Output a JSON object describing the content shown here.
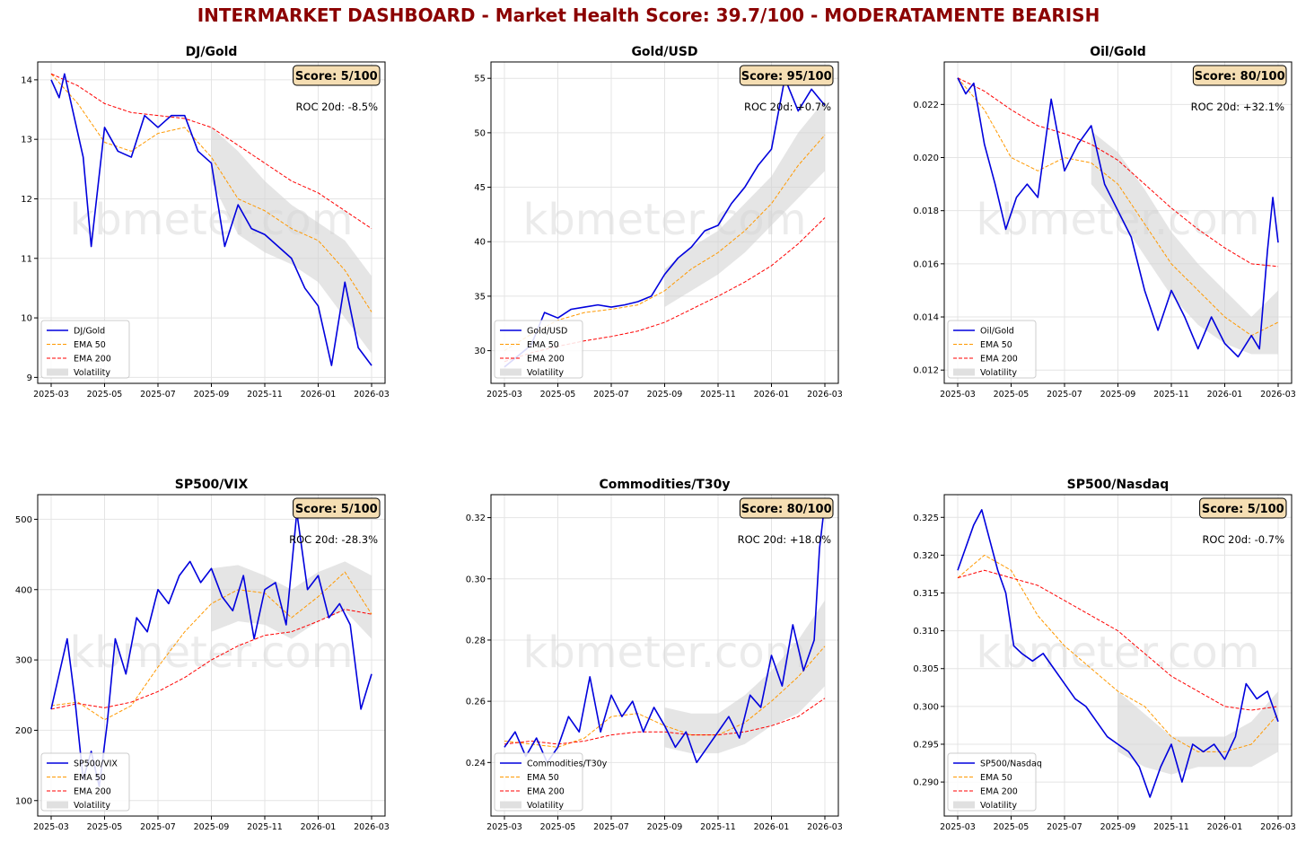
{
  "title": "INTERMARKET DASHBOARD - Market Health Score: 39.7/100 - MODERATAMENTE BEARISH",
  "colors": {
    "title": "#8b0000",
    "price": "#0000dd",
    "ema50": "#ff9900",
    "ema200": "#ff0000",
    "volatility": "#d3d3d3",
    "scoreBox": "#f5deb3"
  },
  "watermark": "kbmeter.com",
  "legend_labels": {
    "ema50": "EMA 50",
    "ema200": "EMA 200",
    "volatility": "Volatility"
  },
  "chart_data": [
    {
      "type": "line",
      "title": "DJ/Gold",
      "score": "Score: 5/100",
      "roc": "ROC 20d: -8.5%",
      "xlabels": [
        "2025-03",
        "2025-05",
        "2025-07",
        "2025-09",
        "2025-11",
        "2026-01",
        "2026-03"
      ],
      "ylim": [
        8.9,
        14.3
      ],
      "yticks": [
        9,
        10,
        11,
        12,
        13,
        14
      ],
      "series": [
        {
          "name": "DJ/Gold",
          "x": [
            0,
            0.3,
            0.5,
            0.8,
            1.2,
            1.5,
            2.0,
            2.5,
            3.0,
            3.5,
            4.0,
            4.5,
            5.0,
            5.5,
            6.0,
            6.5,
            7.0,
            7.5,
            8.0,
            8.5,
            9.0,
            9.5,
            10.0,
            10.5,
            11.0,
            11.5,
            12.0
          ],
          "values": [
            14.0,
            13.7,
            14.1,
            13.5,
            12.7,
            11.2,
            13.2,
            12.8,
            12.7,
            13.4,
            13.2,
            13.4,
            13.4,
            12.8,
            12.6,
            11.2,
            11.9,
            11.5,
            11.4,
            11.2,
            11.0,
            10.5,
            10.2,
            9.2,
            10.6,
            9.5,
            9.2
          ]
        },
        {
          "name": "EMA 50",
          "x": [
            0,
            1,
            2,
            3,
            4,
            5,
            6,
            7,
            8,
            9,
            10,
            11,
            12
          ],
          "values": [
            14.1,
            13.6,
            12.95,
            12.8,
            13.1,
            13.2,
            12.7,
            12.0,
            11.8,
            11.5,
            11.3,
            10.8,
            10.1
          ]
        },
        {
          "name": "EMA 200",
          "x": [
            0,
            1,
            2,
            3,
            4,
            5,
            6,
            7,
            8,
            9,
            10,
            11,
            12
          ],
          "values": [
            14.1,
            13.9,
            13.6,
            13.45,
            13.4,
            13.35,
            13.2,
            12.9,
            12.6,
            12.3,
            12.1,
            11.8,
            11.5
          ]
        }
      ],
      "volatility_band": {
        "x": [
          6,
          7,
          8,
          9,
          10,
          11,
          12
        ],
        "upper": [
          13.2,
          12.8,
          12.3,
          11.9,
          11.6,
          11.3,
          10.7
        ],
        "lower": [
          12.3,
          11.4,
          11.1,
          10.9,
          10.6,
          10.0,
          9.4
        ]
      }
    },
    {
      "type": "line",
      "title": "Gold/USD",
      "score": "Score: 95/100",
      "roc": "ROC 20d: +0.7%",
      "xlabels": [
        "2025-03",
        "2025-05",
        "2025-07",
        "2025-09",
        "2025-11",
        "2026-01",
        "2026-03"
      ],
      "ylim": [
        27,
        56.5
      ],
      "yticks": [
        30,
        35,
        40,
        45,
        50,
        55
      ],
      "series": [
        {
          "name": "Gold/USD",
          "x": [
            0,
            0.5,
            1.0,
            1.5,
            2.0,
            2.5,
            3.0,
            3.5,
            4.0,
            4.5,
            5.0,
            5.5,
            6.0,
            6.5,
            7.0,
            7.5,
            8.0,
            8.5,
            9.0,
            9.5,
            10.0,
            10.5,
            11.0,
            11.5,
            12.0
          ],
          "values": [
            28.5,
            29.5,
            30.5,
            33.5,
            33.0,
            33.8,
            34.0,
            34.2,
            34.0,
            34.2,
            34.5,
            35.0,
            37.0,
            38.5,
            39.5,
            41.0,
            41.5,
            43.5,
            45.0,
            47.0,
            48.5,
            55.0,
            52.0,
            54.0,
            52.5
          ]
        },
        {
          "name": "EMA 50",
          "x": [
            0,
            1,
            2,
            3,
            4,
            5,
            6,
            7,
            8,
            9,
            10,
            11,
            12
          ],
          "values": [
            30.0,
            31.5,
            32.8,
            33.5,
            33.8,
            34.2,
            35.5,
            37.5,
            39.0,
            41.0,
            43.5,
            47.0,
            49.8
          ]
        },
        {
          "name": "EMA 200",
          "x": [
            0,
            1,
            2,
            3,
            4,
            5,
            6,
            7,
            8,
            9,
            10,
            11,
            12
          ],
          "values": [
            29.0,
            29.8,
            30.4,
            30.9,
            31.3,
            31.8,
            32.6,
            33.8,
            35.0,
            36.3,
            37.8,
            39.8,
            42.2
          ]
        }
      ],
      "volatility_band": {
        "x": [
          6,
          7,
          8,
          9,
          10,
          11,
          12
        ],
        "upper": [
          37.5,
          39.5,
          41.0,
          43.5,
          46.0,
          50.0,
          53.0
        ],
        "lower": [
          34.0,
          35.5,
          37.0,
          39.0,
          41.5,
          44.0,
          46.5
        ]
      }
    },
    {
      "type": "line",
      "title": "Oil/Gold",
      "score": "Score: 80/100",
      "roc": "ROC 20d: +32.1%",
      "xlabels": [
        "2025-03",
        "2025-05",
        "2025-07",
        "2025-09",
        "2025-11",
        "2026-01",
        "2026-03"
      ],
      "ylim": [
        0.0115,
        0.0236
      ],
      "yticks": [
        0.012,
        0.014,
        0.016,
        0.018,
        0.02,
        0.022
      ],
      "series": [
        {
          "name": "Oil/Gold",
          "x": [
            0,
            0.3,
            0.6,
            1.0,
            1.4,
            1.8,
            2.2,
            2.6,
            3.0,
            3.5,
            4.0,
            4.5,
            5.0,
            5.5,
            6.0,
            6.5,
            7.0,
            7.5,
            8.0,
            8.5,
            9.0,
            9.5,
            10.0,
            10.5,
            11.0,
            11.3,
            11.6,
            11.8,
            12.0
          ],
          "values": [
            0.023,
            0.0224,
            0.0228,
            0.0205,
            0.019,
            0.0173,
            0.0185,
            0.019,
            0.0185,
            0.0222,
            0.0195,
            0.0205,
            0.0212,
            0.019,
            0.018,
            0.017,
            0.015,
            0.0135,
            0.015,
            0.014,
            0.0128,
            0.014,
            0.013,
            0.0125,
            0.0133,
            0.0128,
            0.0165,
            0.0185,
            0.0168
          ]
        },
        {
          "name": "EMA 50",
          "x": [
            0,
            1,
            2,
            3,
            4,
            5,
            6,
            7,
            8,
            9,
            10,
            11,
            12
          ],
          "values": [
            0.023,
            0.0218,
            0.02,
            0.0195,
            0.02,
            0.0198,
            0.019,
            0.0175,
            0.016,
            0.015,
            0.014,
            0.0133,
            0.0138
          ]
        },
        {
          "name": "EMA 200",
          "x": [
            0,
            1,
            2,
            3,
            4,
            5,
            6,
            7,
            8,
            9,
            10,
            11,
            12
          ],
          "values": [
            0.023,
            0.0225,
            0.0218,
            0.0212,
            0.0209,
            0.0205,
            0.0199,
            0.019,
            0.0181,
            0.0173,
            0.0166,
            0.016,
            0.0159
          ]
        }
      ],
      "volatility_band": {
        "x": [
          5,
          6,
          7,
          8,
          9,
          10,
          11,
          12
        ],
        "upper": [
          0.021,
          0.0202,
          0.0188,
          0.0172,
          0.016,
          0.015,
          0.014,
          0.015
        ],
        "lower": [
          0.019,
          0.0178,
          0.0163,
          0.0148,
          0.0137,
          0.013,
          0.0126,
          0.0126
        ]
      }
    },
    {
      "type": "line",
      "title": "SP500/VIX",
      "score": "Score: 5/100",
      "roc": "ROC 20d: -28.3%",
      "xlabels": [
        "2025-03",
        "2025-05",
        "2025-07",
        "2025-09",
        "2025-11",
        "2026-01",
        "2026-03"
      ],
      "ylim": [
        78,
        535
      ],
      "yticks": [
        100,
        200,
        300,
        400,
        500
      ],
      "series": [
        {
          "name": "SP500/VIX",
          "x": [
            0,
            0.3,
            0.6,
            0.9,
            1.2,
            1.5,
            1.8,
            2.1,
            2.4,
            2.8,
            3.2,
            3.6,
            4.0,
            4.4,
            4.8,
            5.2,
            5.6,
            6.0,
            6.4,
            6.8,
            7.2,
            7.6,
            8.0,
            8.4,
            8.8,
            9.2,
            9.6,
            10.0,
            10.4,
            10.8,
            11.2,
            11.6,
            12.0
          ],
          "values": [
            230,
            280,
            330,
            240,
            130,
            170,
            120,
            210,
            330,
            280,
            360,
            340,
            400,
            380,
            420,
            440,
            410,
            430,
            390,
            370,
            420,
            330,
            400,
            410,
            350,
            510,
            400,
            420,
            360,
            380,
            350,
            230,
            280
          ]
        },
        {
          "name": "EMA 50",
          "x": [
            0,
            1,
            2,
            3,
            4,
            5,
            6,
            7,
            8,
            9,
            10,
            11,
            12
          ],
          "values": [
            235,
            240,
            215,
            235,
            290,
            340,
            380,
            400,
            395,
            360,
            390,
            425,
            365
          ]
        },
        {
          "name": "EMA 200",
          "x": [
            0,
            1,
            2,
            3,
            4,
            5,
            6,
            7,
            8,
            9,
            10,
            11,
            12
          ],
          "values": [
            230,
            238,
            232,
            240,
            255,
            275,
            300,
            320,
            335,
            340,
            355,
            372,
            365
          ]
        }
      ],
      "volatility_band": {
        "x": [
          6,
          7,
          8,
          9,
          10,
          11,
          12
        ],
        "upper": [
          430,
          435,
          420,
          400,
          425,
          440,
          420
        ],
        "lower": [
          340,
          355,
          350,
          330,
          355,
          370,
          330
        ]
      }
    },
    {
      "type": "line",
      "title": "Commodities/T30y",
      "score": "Score: 80/100",
      "roc": "ROC 20d: +18.0%",
      "xlabels": [
        "2025-03",
        "2025-05",
        "2025-07",
        "2025-09",
        "2025-11",
        "2026-01",
        "2026-03"
      ],
      "ylim": [
        0.2225,
        0.3275
      ],
      "yticks": [
        0.24,
        0.26,
        0.28,
        0.3,
        0.32
      ],
      "series": [
        {
          "name": "Commodities/T30y",
          "x": [
            0,
            0.4,
            0.8,
            1.2,
            1.6,
            2.0,
            2.4,
            2.8,
            3.2,
            3.6,
            4.0,
            4.4,
            4.8,
            5.2,
            5.6,
            6.0,
            6.4,
            6.8,
            7.2,
            7.6,
            8.0,
            8.4,
            8.8,
            9.2,
            9.6,
            10.0,
            10.4,
            10.8,
            11.2,
            11.6,
            11.8,
            12.0
          ],
          "values": [
            0.245,
            0.25,
            0.242,
            0.248,
            0.24,
            0.245,
            0.255,
            0.25,
            0.268,
            0.25,
            0.262,
            0.255,
            0.26,
            0.25,
            0.258,
            0.252,
            0.245,
            0.25,
            0.24,
            0.245,
            0.25,
            0.255,
            0.248,
            0.262,
            0.258,
            0.275,
            0.265,
            0.285,
            0.27,
            0.28,
            0.31,
            0.325
          ]
        },
        {
          "name": "EMA 50",
          "x": [
            0,
            1,
            2,
            3,
            4,
            5,
            6,
            7,
            8,
            9,
            10,
            11,
            12
          ],
          "values": [
            0.247,
            0.246,
            0.245,
            0.248,
            0.255,
            0.256,
            0.252,
            0.249,
            0.249,
            0.253,
            0.26,
            0.268,
            0.278
          ]
        },
        {
          "name": "EMA 200",
          "x": [
            0,
            1,
            2,
            3,
            4,
            5,
            6,
            7,
            8,
            9,
            10,
            11,
            12
          ],
          "values": [
            0.246,
            0.247,
            0.246,
            0.247,
            0.249,
            0.25,
            0.25,
            0.249,
            0.249,
            0.25,
            0.252,
            0.255,
            0.261
          ]
        }
      ],
      "volatility_band": {
        "x": [
          6,
          7,
          8,
          9,
          10,
          11,
          12
        ],
        "upper": [
          0.258,
          0.256,
          0.256,
          0.262,
          0.27,
          0.28,
          0.293
        ],
        "lower": [
          0.245,
          0.243,
          0.243,
          0.246,
          0.252,
          0.256,
          0.265
        ]
      }
    },
    {
      "type": "line",
      "title": "SP500/Nasdaq",
      "score": "Score: 5/100",
      "roc": "ROC 20d: -0.7%",
      "xlabels": [
        "2025-03",
        "2025-05",
        "2025-07",
        "2025-09",
        "2025-11",
        "2026-01",
        "2026-03"
      ],
      "ylim": [
        0.2855,
        0.328
      ],
      "yticks": [
        0.29,
        0.295,
        0.3,
        0.305,
        0.31,
        0.315,
        0.32,
        0.325
      ],
      "series": [
        {
          "name": "SP500/Nasdaq",
          "x": [
            0,
            0.3,
            0.6,
            0.9,
            1.2,
            1.5,
            1.8,
            2.1,
            2.4,
            2.8,
            3.2,
            3.6,
            4.0,
            4.4,
            4.8,
            5.2,
            5.6,
            6.0,
            6.4,
            6.8,
            7.2,
            7.6,
            8.0,
            8.4,
            8.8,
            9.2,
            9.6,
            10.0,
            10.4,
            10.8,
            11.2,
            11.6,
            12.0
          ],
          "values": [
            0.318,
            0.321,
            0.324,
            0.326,
            0.322,
            0.318,
            0.315,
            0.308,
            0.307,
            0.306,
            0.307,
            0.305,
            0.303,
            0.301,
            0.3,
            0.298,
            0.296,
            0.295,
            0.294,
            0.292,
            0.288,
            0.292,
            0.295,
            0.29,
            0.295,
            0.294,
            0.295,
            0.293,
            0.296,
            0.303,
            0.301,
            0.302,
            0.298
          ]
        },
        {
          "name": "EMA 50",
          "x": [
            0,
            1,
            2,
            3,
            4,
            5,
            6,
            7,
            8,
            9,
            10,
            11,
            12
          ],
          "values": [
            0.317,
            0.32,
            0.318,
            0.312,
            0.308,
            0.305,
            0.302,
            0.3,
            0.296,
            0.294,
            0.294,
            0.295,
            0.299
          ]
        },
        {
          "name": "EMA 200",
          "x": [
            0,
            1,
            2,
            3,
            4,
            5,
            6,
            7,
            8,
            9,
            10,
            11,
            12
          ],
          "values": [
            0.317,
            0.318,
            0.317,
            0.316,
            0.314,
            0.312,
            0.31,
            0.307,
            0.304,
            0.302,
            0.3,
            0.2995,
            0.3
          ]
        }
      ],
      "volatility_band": {
        "x": [
          6,
          7,
          8,
          9,
          10,
          11,
          12
        ],
        "upper": [
          0.302,
          0.299,
          0.296,
          0.296,
          0.296,
          0.298,
          0.302
        ],
        "lower": [
          0.294,
          0.292,
          0.291,
          0.292,
          0.292,
          0.292,
          0.294
        ]
      }
    }
  ]
}
